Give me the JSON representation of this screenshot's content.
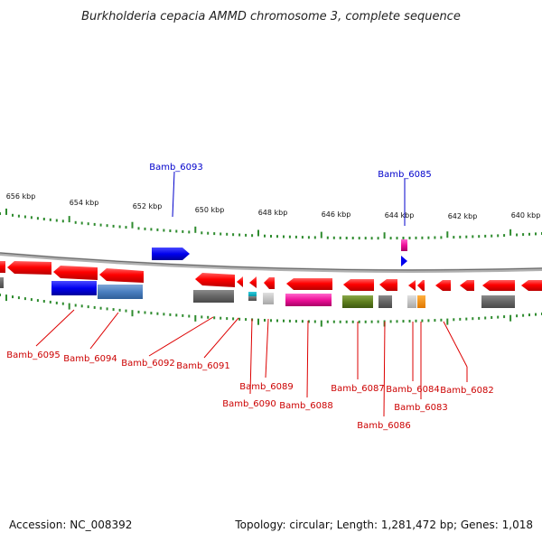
{
  "title": "Burkholderia cepacia AMMD chromosome 3, complete sequence",
  "footer": {
    "accession": "Accession: NC_008392",
    "topology": "Topology: circular; Length: 1,281,472 bp; Genes: 1,018"
  },
  "colors": {
    "backbone": "#999999",
    "ticks": "#2e8b2e",
    "forward_label": "#0000cc",
    "reverse_label": "#cc0000"
  },
  "kbp_labels": [
    "656 kbp",
    "654 kbp",
    "652 kbp",
    "650 kbp",
    "648 kbp",
    "646 kbp",
    "644 kbp",
    "642 kbp",
    "640 kbp"
  ],
  "genes": [
    {
      "name": "Bamb_6095",
      "strand": "reverse"
    },
    {
      "name": "Bamb_6094",
      "strand": "reverse"
    },
    {
      "name": "Bamb_6093",
      "strand": "forward"
    },
    {
      "name": "Bamb_6092",
      "strand": "reverse"
    },
    {
      "name": "Bamb_6091",
      "strand": "reverse"
    },
    {
      "name": "Bamb_6090",
      "strand": "reverse"
    },
    {
      "name": "Bamb_6089",
      "strand": "reverse"
    },
    {
      "name": "Bamb_6088",
      "strand": "reverse"
    },
    {
      "name": "Bamb_6087",
      "strand": "reverse"
    },
    {
      "name": "Bamb_6086",
      "strand": "reverse"
    },
    {
      "name": "Bamb_6085",
      "strand": "forward"
    },
    {
      "name": "Bamb_6084",
      "strand": "reverse"
    },
    {
      "name": "Bamb_6083",
      "strand": "reverse"
    },
    {
      "name": "Bamb_6082",
      "strand": "reverse"
    }
  ]
}
